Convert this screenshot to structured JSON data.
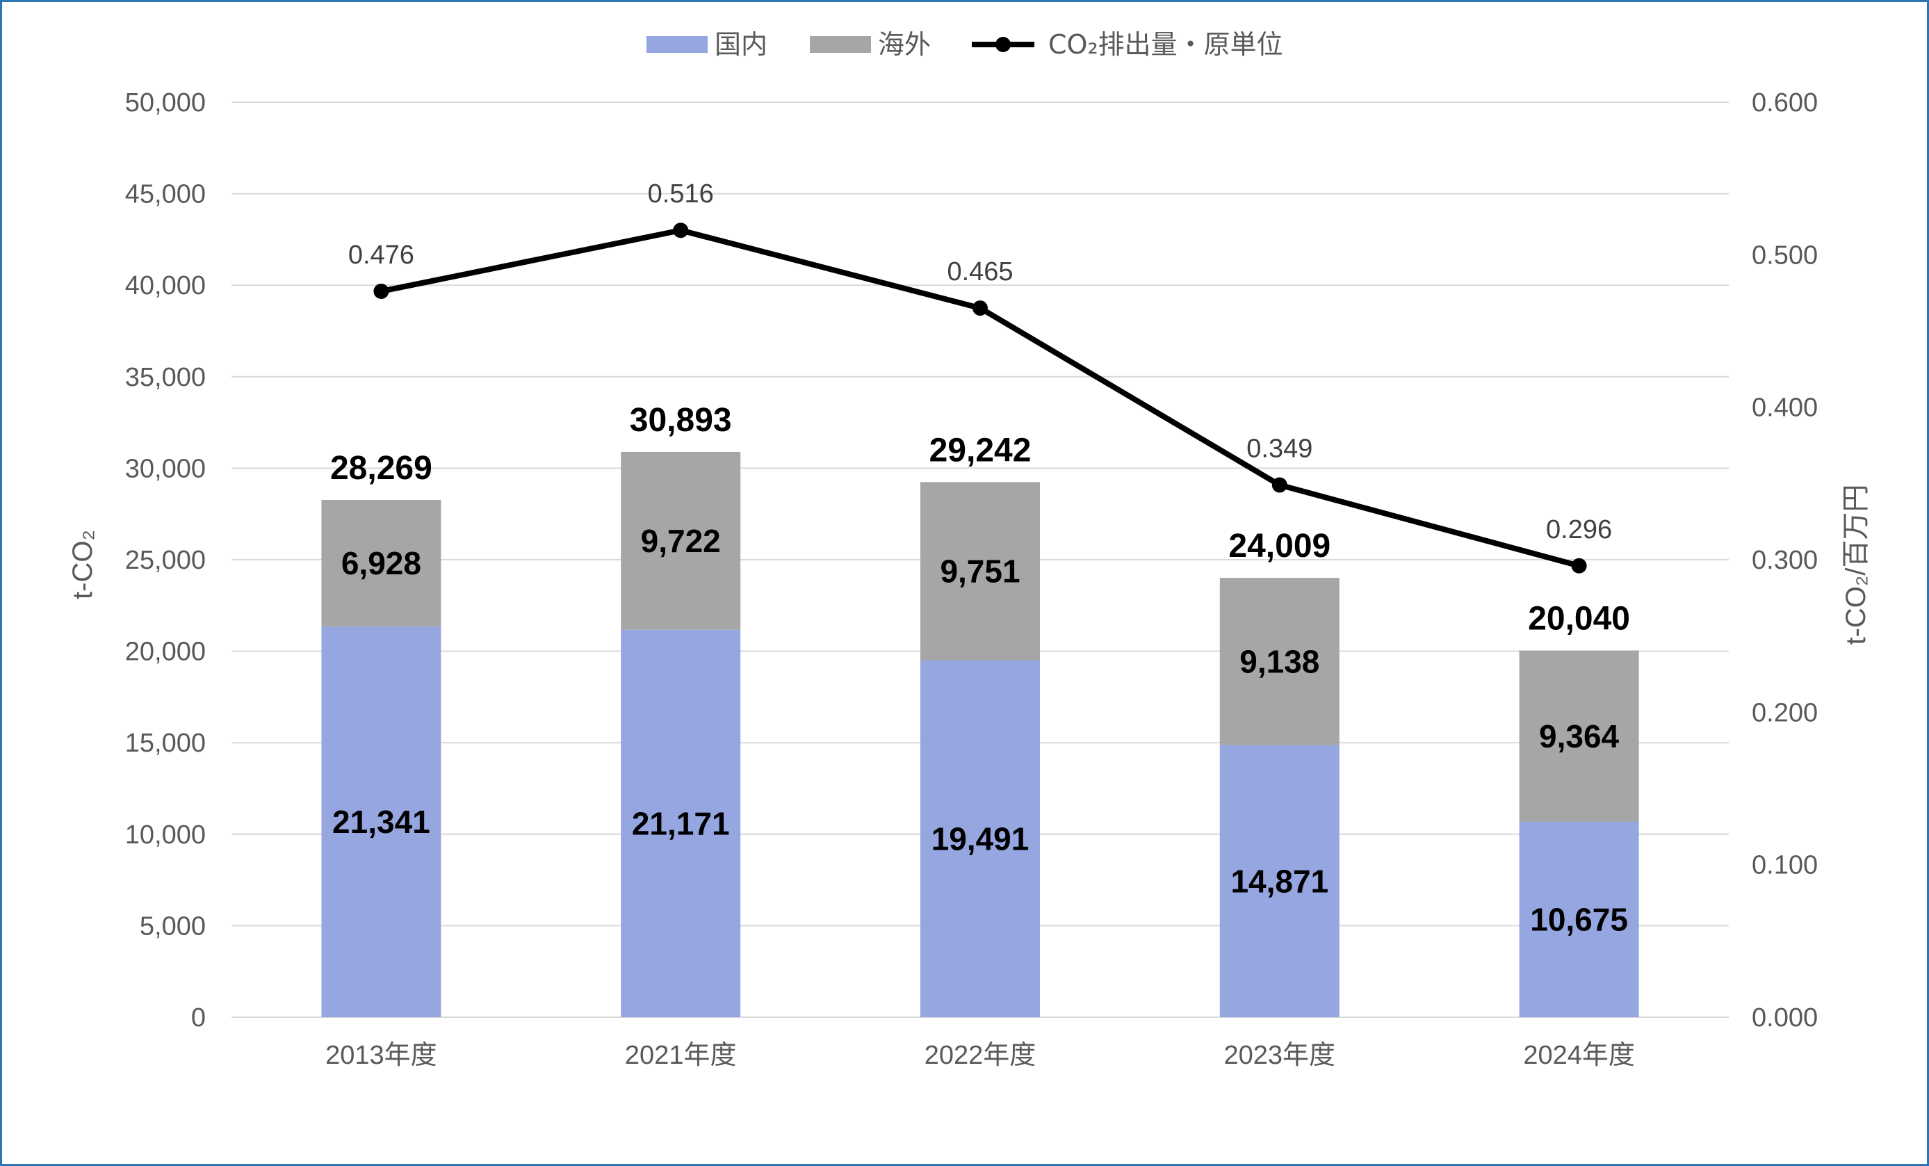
{
  "chart_data": {
    "type": "bar",
    "stacked": true,
    "categories": [
      "2013年度",
      "2021年度",
      "2022年度",
      "2023年度",
      "2024年度"
    ],
    "series": [
      {
        "name": "国内",
        "type": "bar",
        "axis": "left",
        "color": "#95a6e0",
        "values": [
          21341,
          21171,
          19491,
          14871,
          10675
        ]
      },
      {
        "name": "海外",
        "type": "bar",
        "axis": "left",
        "color": "#a6a6a6",
        "values": [
          6928,
          9722,
          9751,
          9138,
          9364
        ]
      },
      {
        "name": "CO₂排出量・原単位",
        "type": "line",
        "axis": "right",
        "color": "#000000",
        "values": [
          0.476,
          0.516,
          0.465,
          0.349,
          0.296
        ]
      }
    ],
    "segment_labels": {
      "国内": [
        "21,341",
        "21,171",
        "19,491",
        "14,871",
        "10,675"
      ],
      "海外": [
        "6,928",
        "9,722",
        "9,751",
        "9,138",
        "9,364"
      ]
    },
    "totals": [
      28269,
      30893,
      29242,
      24009,
      20040
    ],
    "total_labels": [
      "28,269",
      "30,893",
      "29,242",
      "24,009",
      "20,040"
    ],
    "line_labels": [
      "0.476",
      "0.516",
      "0.465",
      "0.349",
      "0.296"
    ],
    "ylabel": "t-CO₂",
    "y2label": "t-CO₂/百万円",
    "ylim": [
      0,
      50000
    ],
    "y2lim": [
      0,
      0.6
    ],
    "y_ticks": [
      "0",
      "5,000",
      "10,000",
      "15,000",
      "20,000",
      "25,000",
      "30,000",
      "35,000",
      "40,000",
      "45,000",
      "50,000"
    ],
    "y2_ticks": [
      "0.000",
      "0.100",
      "0.200",
      "0.300",
      "0.400",
      "0.500",
      "0.600"
    ],
    "grid": true,
    "legend_position": "top",
    "gridline_color": "#d9d9d9"
  }
}
